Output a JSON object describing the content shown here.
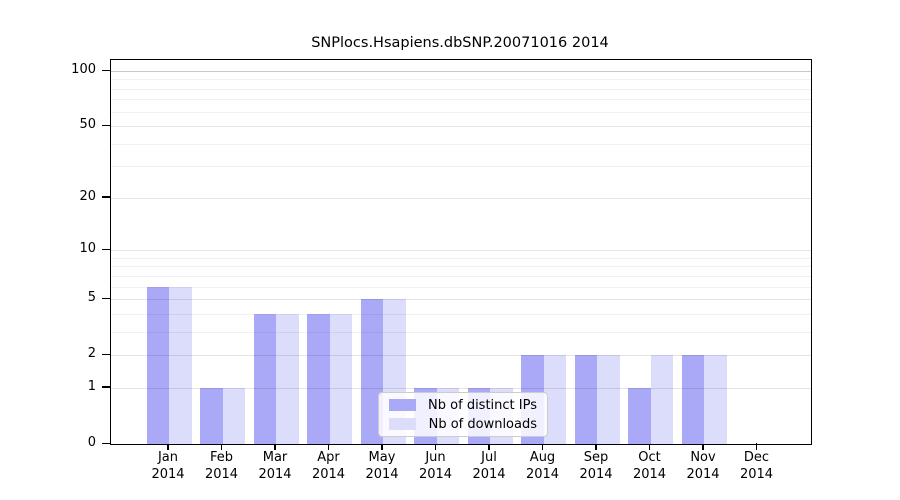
{
  "title": "SNPlocs.Hsapiens.dbSNP.20071016 2014",
  "chart_data": {
    "type": "bar",
    "title": "SNPlocs.Hsapiens.dbSNP.20071016 2014",
    "xlabel": "",
    "ylabel": "",
    "scale": "log1p",
    "grid": true,
    "ylim": [
      0,
      115
    ],
    "year": "2014",
    "categories": [
      "Jan",
      "Feb",
      "Mar",
      "Apr",
      "May",
      "Jun",
      "Jul",
      "Aug",
      "Sep",
      "Oct",
      "Nov",
      "Dec"
    ],
    "series": [
      {
        "name": "Nb of distinct IPs",
        "color": "#a9a9f8",
        "values": [
          6,
          1,
          4,
          4,
          5,
          1,
          1,
          2,
          2,
          1,
          2,
          0
        ]
      },
      {
        "name": "Nb of downloads",
        "color": "#dcdcfb",
        "values": [
          6,
          1,
          4,
          4,
          5,
          1,
          1,
          2,
          2,
          2,
          2,
          0
        ]
      }
    ],
    "y_ticks": [
      0,
      1,
      2,
      5,
      10,
      20,
      50,
      100
    ],
    "minor_gridline_values": [
      3,
      4,
      6,
      7,
      8,
      9,
      30,
      40,
      60,
      70,
      80,
      90
    ],
    "legend_position": "inside-bottom-center"
  }
}
